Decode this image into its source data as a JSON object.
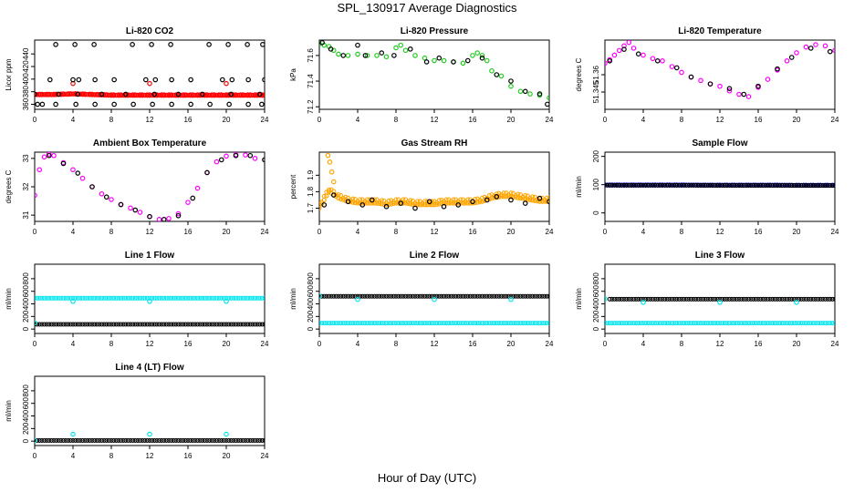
{
  "figure": {
    "title": "SPL_130917  Average Diagnostics",
    "xlabel": "Hour of Day (UTC)"
  },
  "colors": {
    "red": "#ff0000",
    "green": "#22cc22",
    "magenta": "#ff00ff",
    "orange": "#ffa500",
    "blue": "#0000cc",
    "cyan": "#00e5ee",
    "black": "#000000"
  },
  "chart_data": [
    {
      "id": "co2",
      "type": "scatter",
      "title": "Li-820 CO2",
      "ylabel": "Licor ppm",
      "xlim": [
        0,
        24
      ],
      "ylim": [
        352,
        462
      ],
      "xticks": [
        0,
        4,
        8,
        12,
        16,
        20,
        24
      ],
      "yticks": [
        360,
        380,
        400,
        420,
        440
      ],
      "series": [
        {
          "color": "red",
          "kind": "band",
          "x": [
            0,
            2,
            4,
            6,
            8,
            10,
            12,
            14,
            16,
            18,
            20,
            22,
            24
          ],
          "y": [
            375,
            375,
            376,
            375,
            374,
            374,
            374,
            374,
            374,
            374,
            374,
            374,
            374
          ],
          "spread": 2.5
        },
        {
          "color": "red",
          "x": [
            4,
            12,
            20
          ],
          "y": [
            393,
            393,
            393
          ]
        },
        {
          "color": "black",
          "x": [
            0.3,
            0.8,
            2.2,
            4.3,
            6.3,
            8.3,
            10.3,
            12.3,
            14.3,
            16.3,
            18.3,
            20.3,
            22.3,
            23.7
          ],
          "y": [
            360,
            360,
            360,
            360,
            360,
            360,
            360,
            360,
            360,
            360,
            360,
            360,
            360,
            360
          ]
        },
        {
          "color": "black",
          "x": [
            2.2,
            4.2,
            6.2,
            10.2,
            12.2,
            14.2,
            18.2,
            20.2,
            22.2,
            23.8
          ],
          "y": [
            455,
            455,
            455,
            455,
            455,
            455,
            455,
            455,
            455,
            455
          ]
        },
        {
          "color": "black",
          "x": [
            1.6,
            4.0,
            4.6,
            6.3,
            8.3,
            11.6,
            12.6,
            14.3,
            16.3,
            19.6,
            20.6,
            22.3,
            24.0
          ],
          "y": [
            399,
            399,
            399,
            399,
            399,
            399,
            399,
            399,
            399,
            399,
            399,
            399,
            399
          ]
        },
        {
          "color": "black",
          "x": [
            0.0,
            2.5,
            4.5,
            7.0,
            9.5,
            12.5,
            15.0,
            17.5,
            20.5,
            23.5
          ],
          "y": [
            376,
            376,
            376,
            376,
            376,
            376,
            376,
            376,
            376,
            376
          ]
        }
      ]
    },
    {
      "id": "pressure",
      "type": "scatter",
      "title": "Li-820 Pressure",
      "ylabel": "kPa",
      "xlim": [
        0,
        24
      ],
      "ylim": [
        71.18,
        71.72
      ],
      "xticks": [
        0,
        4,
        8,
        12,
        16,
        20,
        24
      ],
      "yticks": [
        71.2,
        71.4,
        71.6
      ],
      "series": [
        {
          "color": "green",
          "x": [
            0,
            0.5,
            1,
            1.5,
            2,
            3,
            4,
            5,
            6,
            7,
            8,
            8.5,
            9,
            10,
            11,
            12,
            13,
            14,
            15,
            16,
            16.5,
            17,
            17.5,
            18,
            19,
            20,
            21,
            22,
            23,
            24
          ],
          "y": [
            71.69,
            71.68,
            71.67,
            71.64,
            71.61,
            71.6,
            71.61,
            71.6,
            71.6,
            71.59,
            71.66,
            71.68,
            71.64,
            71.6,
            71.58,
            71.56,
            71.56,
            71.55,
            71.54,
            71.6,
            71.62,
            71.6,
            71.56,
            71.48,
            71.44,
            71.36,
            71.32,
            71.3,
            71.29,
            71.27
          ]
        },
        {
          "color": "black",
          "x": [
            0.3,
            1.2,
            2.5,
            4.0,
            4.8,
            6.5,
            7.8,
            9.5,
            11.2,
            12.5,
            14.0,
            15.5,
            17.0,
            18.5,
            20.0,
            21.5,
            23.0,
            23.8
          ],
          "y": [
            71.7,
            71.65,
            71.6,
            71.68,
            71.6,
            71.62,
            71.6,
            71.65,
            71.55,
            71.58,
            71.55,
            71.56,
            71.58,
            71.45,
            71.4,
            71.32,
            71.3,
            71.22
          ]
        }
      ]
    },
    {
      "id": "licor_temp",
      "type": "scatter",
      "title": "Li-820 Temperature",
      "ylabel": "degrees C",
      "xlim": [
        0,
        24
      ],
      "ylim": [
        51.33,
        51.39
      ],
      "xticks": [
        0,
        4,
        8,
        12,
        16,
        20,
        24
      ],
      "yticks": [
        51.345,
        51.36
      ],
      "series": [
        {
          "color": "magenta",
          "x": [
            0,
            0.5,
            1,
            1.5,
            2,
            2.5,
            3,
            4,
            5,
            6,
            7,
            8,
            9,
            10,
            11,
            12,
            13,
            14,
            15,
            16,
            17,
            18,
            19,
            20,
            21,
            22,
            23,
            24
          ],
          "y": [
            51.37,
            51.373,
            51.377,
            51.381,
            51.385,
            51.388,
            51.383,
            51.377,
            51.374,
            51.372,
            51.367,
            51.362,
            51.358,
            51.355,
            51.352,
            51.35,
            51.346,
            51.343,
            51.341,
            51.349,
            51.356,
            51.364,
            51.372,
            51.379,
            51.384,
            51.386,
            51.385,
            51.381
          ]
        },
        {
          "color": "black",
          "x": [
            0.5,
            2.0,
            3.5,
            5.5,
            7.5,
            9.0,
            11.0,
            13.0,
            14.5,
            16.0,
            18.0,
            19.5,
            21.5,
            23.5
          ],
          "y": [
            51.372,
            51.382,
            51.378,
            51.372,
            51.366,
            51.358,
            51.352,
            51.348,
            51.343,
            51.35,
            51.365,
            51.375,
            51.383,
            51.38
          ]
        }
      ]
    },
    {
      "id": "ambient_temp",
      "type": "scatter",
      "title": "Ambient Box Temperature",
      "ylabel": "degrees C",
      "xlim": [
        0,
        24
      ],
      "ylim": [
        30.78,
        33.22
      ],
      "xticks": [
        0,
        4,
        8,
        12,
        16,
        20,
        24
      ],
      "yticks": [
        31.0,
        32.0,
        33.0
      ],
      "series": [
        {
          "color": "magenta",
          "x": [
            0,
            0.5,
            1,
            1.5,
            2,
            3,
            4,
            5,
            6,
            7,
            8,
            9,
            10,
            11,
            12,
            13,
            14,
            15,
            16,
            17,
            18,
            19,
            20,
            21,
            22,
            23,
            24
          ],
          "y": [
            31.7,
            32.6,
            33.05,
            33.15,
            33.1,
            32.85,
            32.6,
            32.3,
            32.0,
            31.75,
            31.55,
            31.38,
            31.25,
            31.1,
            30.95,
            30.85,
            30.88,
            31.05,
            31.45,
            31.95,
            32.5,
            32.88,
            33.08,
            33.13,
            33.12,
            33.0,
            32.95
          ]
        },
        {
          "color": "black",
          "x": [
            1.5,
            3.0,
            4.5,
            6.0,
            7.5,
            9.0,
            10.5,
            12.0,
            13.5,
            15.0,
            16.5,
            18.0,
            19.5,
            21.0,
            22.5,
            24.0
          ],
          "y": [
            33.1,
            32.82,
            32.48,
            32.0,
            31.64,
            31.37,
            31.18,
            30.95,
            30.85,
            30.98,
            31.6,
            32.5,
            32.95,
            33.1,
            33.1,
            32.95
          ]
        }
      ]
    },
    {
      "id": "rh",
      "type": "scatter",
      "title": "Gas Stream RH",
      "ylabel": "percent",
      "xlim": [
        0,
        24
      ],
      "ylim": [
        1.62,
        2.04
      ],
      "xticks": [
        0,
        4,
        8,
        12,
        16,
        20,
        24
      ],
      "yticks": [
        1.7,
        1.8,
        1.9
      ],
      "series": [
        {
          "color": "orange",
          "kind": "band",
          "x": [
            0,
            1,
            2,
            3,
            4,
            5,
            6,
            7,
            8,
            9,
            10,
            11,
            12,
            13,
            14,
            15,
            16,
            17,
            18,
            19,
            20,
            21,
            22,
            23,
            24
          ],
          "y": [
            1.7,
            1.8,
            1.76,
            1.74,
            1.73,
            1.73,
            1.73,
            1.72,
            1.73,
            1.73,
            1.72,
            1.72,
            1.72,
            1.73,
            1.73,
            1.73,
            1.73,
            1.74,
            1.76,
            1.77,
            1.77,
            1.76,
            1.75,
            1.74,
            1.74
          ],
          "spread": 0.045
        },
        {
          "color": "orange",
          "x": [
            0.9,
            1.1,
            1.3,
            1.5
          ],
          "y": [
            2.02,
            1.98,
            1.92,
            1.86
          ]
        },
        {
          "color": "black",
          "x": [
            0.5,
            1.5,
            3,
            4.5,
            5.5,
            7,
            8.5,
            10,
            11.5,
            13,
            14.5,
            16,
            17.5,
            18.5,
            20,
            21.5,
            23,
            24
          ],
          "y": [
            1.72,
            1.78,
            1.74,
            1.72,
            1.75,
            1.71,
            1.73,
            1.7,
            1.74,
            1.71,
            1.72,
            1.74,
            1.75,
            1.77,
            1.75,
            1.73,
            1.76,
            1.74
          ]
        }
      ]
    },
    {
      "id": "sample_flow",
      "type": "scatter",
      "title": "Sample Flow",
      "ylabel": "ml/min",
      "xlim": [
        0,
        24
      ],
      "ylim": [
        -30,
        215
      ],
      "xticks": [
        0,
        4,
        8,
        12,
        16,
        20,
        24
      ],
      "yticks": [
        0,
        100,
        200
      ],
      "series": [
        {
          "color": "blue",
          "kind": "band",
          "x": [
            0,
            24
          ],
          "y": [
            98,
            97
          ],
          "spread": 3
        },
        {
          "color": "black",
          "kind": "line",
          "x": [
            0,
            24
          ],
          "y": [
            98,
            97
          ]
        }
      ]
    },
    {
      "id": "line1",
      "type": "scatter",
      "title": "Line 1 Flow",
      "ylabel": "ml/min",
      "xlim": [
        0,
        24
      ],
      "ylim": [
        -70,
        1030
      ],
      "xticks": [
        0,
        4,
        8,
        12,
        16,
        20,
        24
      ],
      "yticks": [
        0,
        200,
        400,
        600,
        800
      ],
      "series": [
        {
          "color": "cyan",
          "kind": "line",
          "x": [
            0,
            24
          ],
          "y": [
            490,
            490
          ]
        },
        {
          "color": "cyan",
          "x": [
            4,
            12,
            20
          ],
          "y": [
            440,
            440,
            440
          ]
        },
        {
          "color": "black",
          "kind": "line",
          "x": [
            0,
            24
          ],
          "y": [
            75,
            75
          ]
        },
        {
          "color": "cyan",
          "x": [
            0
          ],
          "y": [
            100
          ]
        }
      ]
    },
    {
      "id": "line2",
      "type": "scatter",
      "title": "Line 2 Flow",
      "ylabel": "ml/min",
      "xlim": [
        0,
        24
      ],
      "ylim": [
        -70,
        1030
      ],
      "xticks": [
        0,
        4,
        8,
        12,
        16,
        20,
        24
      ],
      "yticks": [
        0,
        200,
        400,
        600,
        800
      ],
      "series": [
        {
          "color": "black",
          "kind": "line",
          "x": [
            0,
            24
          ],
          "y": [
            520,
            520
          ]
        },
        {
          "color": "cyan",
          "x": [
            0,
            4,
            12,
            20
          ],
          "y": [
            525,
            470,
            470,
            470
          ]
        },
        {
          "color": "cyan",
          "kind": "line",
          "x": [
            0,
            24
          ],
          "y": [
            95,
            95
          ]
        }
      ]
    },
    {
      "id": "line3",
      "type": "scatter",
      "title": "Line 3 Flow",
      "ylabel": "ml/min",
      "xlim": [
        0,
        24
      ],
      "ylim": [
        -70,
        1030
      ],
      "xticks": [
        0,
        4,
        8,
        12,
        16,
        20,
        24
      ],
      "yticks": [
        0,
        200,
        400,
        600,
        800
      ],
      "series": [
        {
          "color": "black",
          "kind": "line",
          "x": [
            0.5,
            24
          ],
          "y": [
            475,
            475
          ]
        },
        {
          "color": "cyan",
          "x": [
            0,
            4,
            12,
            20
          ],
          "y": [
            480,
            425,
            425,
            425
          ]
        },
        {
          "color": "cyan",
          "kind": "line",
          "x": [
            0,
            24
          ],
          "y": [
            95,
            95
          ]
        }
      ]
    },
    {
      "id": "line4",
      "type": "scatter",
      "title": "Line 4 (LT) Flow",
      "ylabel": "ml/min",
      "xlim": [
        0,
        24
      ],
      "ylim": [
        -70,
        1030
      ],
      "xticks": [
        0,
        4,
        8,
        12,
        16,
        20,
        24
      ],
      "yticks": [
        0,
        200,
        400,
        600,
        800
      ],
      "series": [
        {
          "color": "black",
          "kind": "line",
          "x": [
            0,
            24
          ],
          "y": [
            10,
            10
          ]
        },
        {
          "color": "cyan",
          "x": [
            0,
            4,
            12,
            20
          ],
          "y": [
            10,
            110,
            110,
            110
          ]
        }
      ]
    }
  ]
}
